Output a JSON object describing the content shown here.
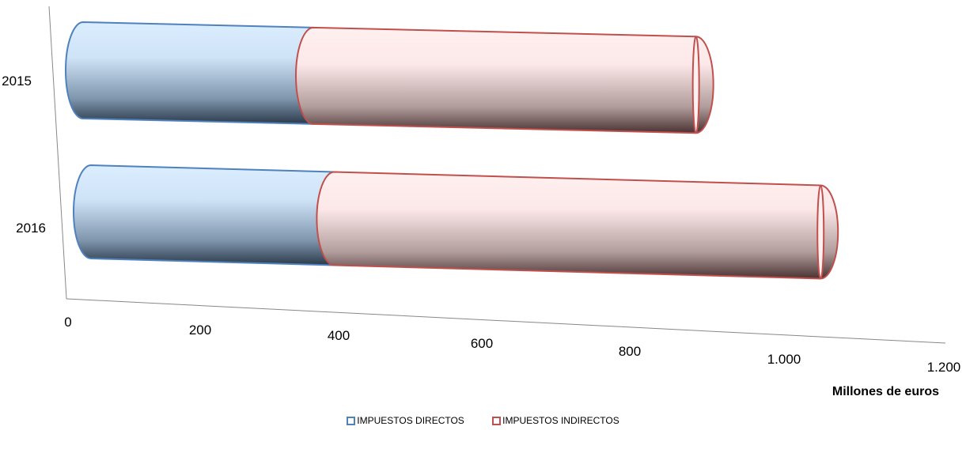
{
  "chart_data": {
    "type": "bar",
    "orientation": "horizontal",
    "style": "3d-cylinder-stacked",
    "categories": [
      "2015",
      "2016"
    ],
    "series": [
      {
        "name": "IMPUESTOS DIRECTOS",
        "values": [
          355,
          375
        ],
        "color": "#4f81bd",
        "fill_light": "#dbeeff",
        "fill_dark": "#2b3a4a"
      },
      {
        "name": "IMPUESTOS INDIRECTOS",
        "values": [
          590,
          750
        ],
        "color": "#c0504d",
        "fill_light": "#fff0f0",
        "fill_dark": "#4a3232"
      }
    ],
    "xlim": [
      0,
      1200
    ],
    "x_ticks": [
      "0",
      "200",
      "400",
      "600",
      "800",
      "1.000",
      "1.200"
    ],
    "xlabel": "Millones de euros",
    "ylabel": "",
    "title": "",
    "legend_position": "bottom",
    "grid": false
  }
}
